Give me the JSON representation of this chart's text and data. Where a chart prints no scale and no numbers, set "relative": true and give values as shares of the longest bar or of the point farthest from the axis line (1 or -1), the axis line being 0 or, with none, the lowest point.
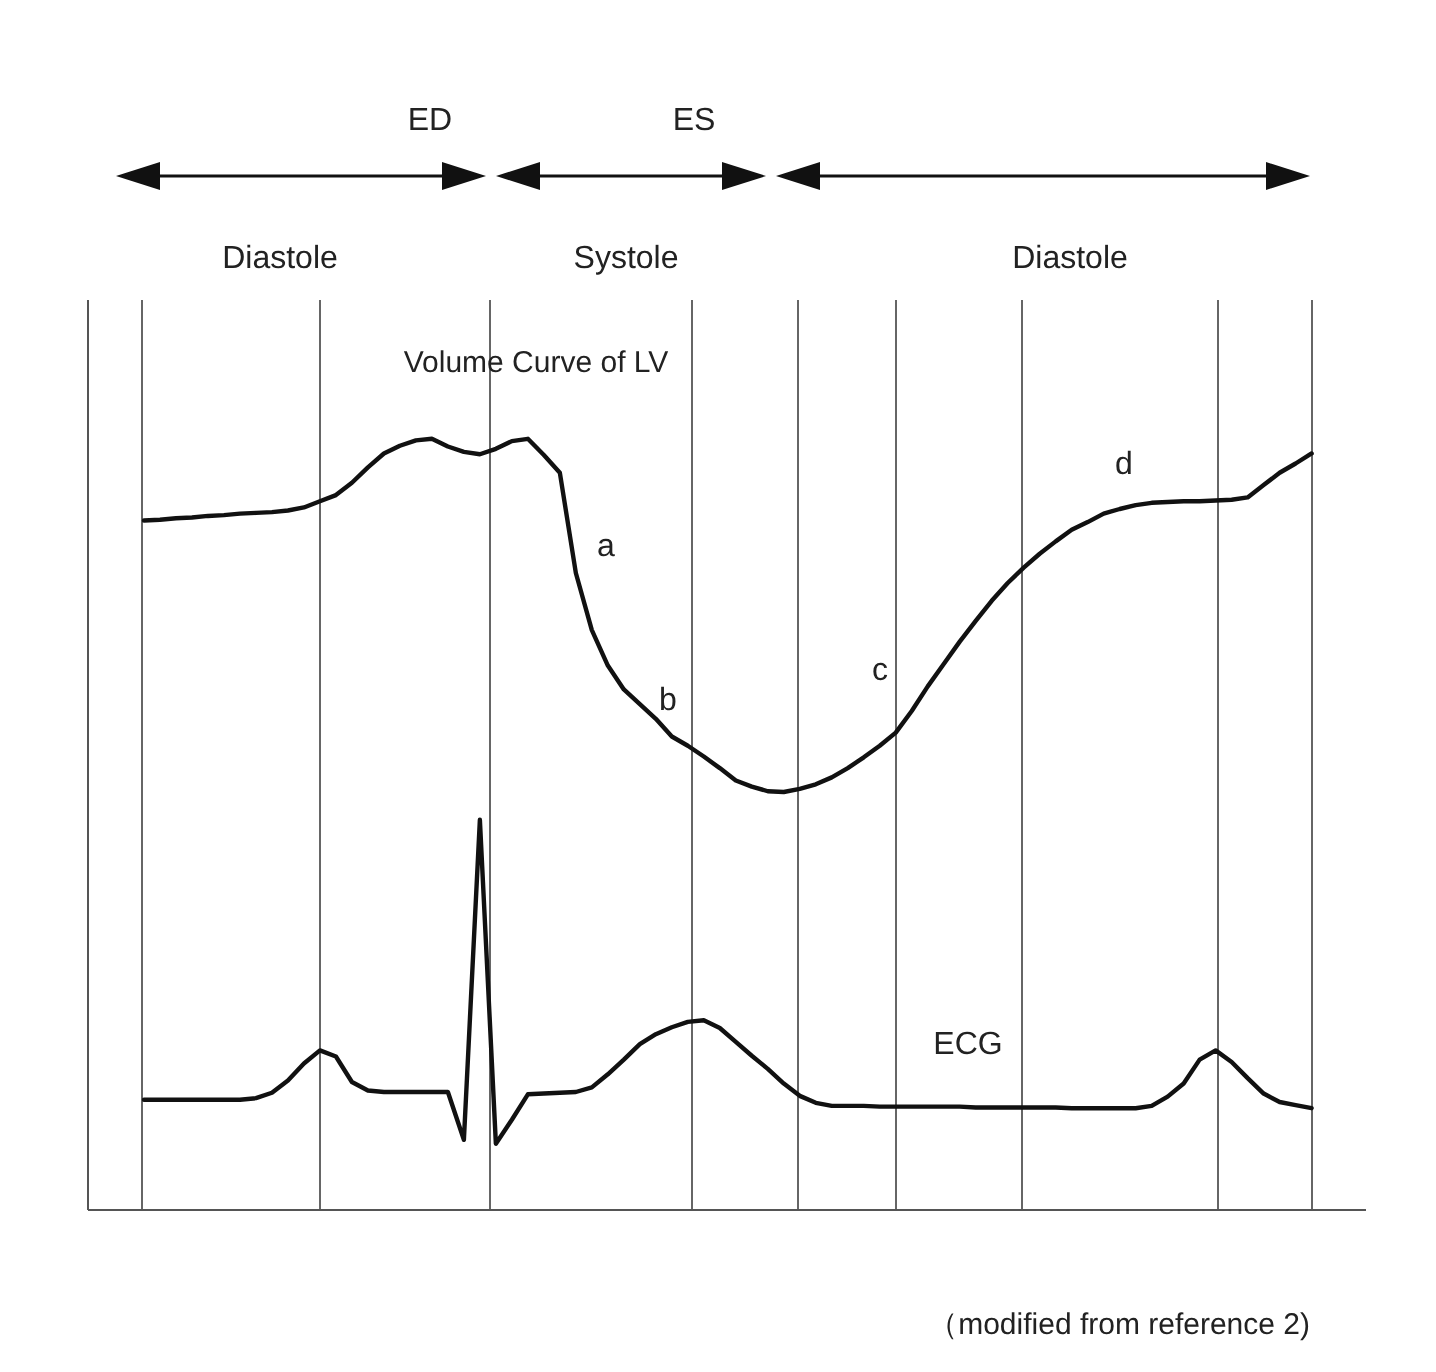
{
  "chart_data": {
    "type": "line",
    "relative": true,
    "marker": "none",
    "line_style": "solid",
    "grid": "x",
    "categories": [
      null,
      null,
      null,
      null,
      null,
      null,
      null,
      null,
      null,
      null,
      null,
      null,
      null,
      null,
      null,
      null,
      null,
      null,
      null,
      null,
      null,
      null,
      null,
      null,
      null,
      null,
      null,
      null,
      null,
      null,
      null,
      null,
      null,
      null,
      null,
      null,
      null,
      null,
      null,
      null,
      null,
      null,
      null,
      null,
      null,
      null,
      null,
      null,
      null,
      null,
      null,
      null,
      null,
      null,
      null,
      null,
      null,
      null,
      null,
      null,
      null,
      null,
      null,
      null,
      null,
      null,
      null,
      null,
      null,
      null,
      null,
      null,
      null,
      null
    ],
    "series": [
      {
        "color": "#111111",
        "values": [
          0.894,
          0.895,
          0.897,
          0.898,
          0.9,
          0.901,
          0.903,
          0.904,
          0.905,
          0.907,
          0.911,
          0.919,
          0.927,
          0.943,
          0.963,
          0.981,
          0.991,
          0.998,
          1,
          0.99,
          0.983,
          0.98,
          0.987,
          0.997,
          1,
          0.979,
          0.956,
          0.826,
          0.752,
          0.706,
          0.675,
          0.656,
          0.637,
          0.614,
          0.602,
          0.588,
          0.573,
          0.557,
          0.549,
          0.543,
          0.542,
          0.546,
          0.552,
          0.561,
          0.573,
          0.587,
          0.602,
          0.619,
          0.647,
          0.679,
          0.708,
          0.737,
          0.764,
          0.79,
          0.813,
          0.833,
          0.851,
          0.867,
          0.882,
          0.892,
          0.903,
          0.909,
          0.914,
          0.917,
          0.918,
          0.919,
          0.919,
          0.92,
          0.921,
          0.924,
          0.94,
          0.956,
          0.968,
          0.981
        ]
      },
      {
        "color": "#111111",
        "values": [
          0.143,
          0.143,
          0.143,
          0.143,
          0.143,
          0.143,
          0.143,
          0.145,
          0.152,
          0.168,
          0.19,
          0.207,
          0.199,
          0.166,
          0.155,
          0.153,
          0.153,
          0.153,
          0.153,
          0.153,
          0.091,
          0.506,
          0.086,
          0.117,
          0.15,
          0.151,
          0.152,
          0.153,
          0.159,
          0.176,
          0.195,
          0.215,
          0.228,
          0.237,
          0.244,
          0.246,
          0.236,
          0.218,
          0.2,
          0.183,
          0.164,
          0.148,
          0.139,
          0.135,
          0.135,
          0.135,
          0.134,
          0.134,
          0.134,
          0.134,
          0.134,
          0.134,
          0.133,
          0.133,
          0.133,
          0.133,
          0.133,
          0.133,
          0.132,
          0.132,
          0.132,
          0.132,
          0.132,
          0.135,
          0.147,
          0.164,
          0.195,
          0.207,
          0.192,
          0.171,
          0.151,
          0.14,
          0.136,
          0.132
        ]
      }
    ],
    "annotations": [
      "ED",
      "ES",
      "Diastole",
      "Systole",
      "Diastole",
      "Volume Curve of LV",
      "a",
      "b",
      "c",
      "d",
      "ECG",
      "（modified from reference 2)"
    ]
  }
}
